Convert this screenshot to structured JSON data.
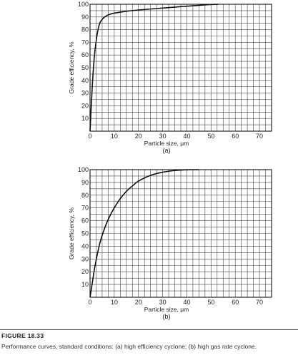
{
  "chart_data": [
    {
      "type": "line",
      "panel_label": "(a)",
      "xlabel": "Particle size, μm",
      "ylabel": "Grade efficiency, %",
      "xlim": [
        0,
        75
      ],
      "ylim": [
        0,
        100
      ],
      "x_ticks": [
        0,
        10,
        20,
        30,
        40,
        50,
        60,
        70
      ],
      "y_ticks": [
        10,
        20,
        30,
        40,
        50,
        60,
        70,
        80,
        90,
        100
      ],
      "grid": true,
      "series": [
        {
          "x": [
            0,
            0.5,
            1,
            1.5,
            2,
            3,
            4,
            5,
            6,
            8,
            10,
            15,
            20,
            30,
            40,
            50,
            53
          ],
          "y": [
            0,
            20,
            38,
            52,
            63,
            77,
            85,
            88,
            90,
            92,
            93,
            94.5,
            95.5,
            97,
            98.5,
            99.8,
            100
          ]
        }
      ]
    },
    {
      "type": "line",
      "panel_label": "(b)",
      "xlabel": "Particle size, μm",
      "ylabel": "Grade efficiency, %",
      "xlim": [
        0,
        75
      ],
      "ylim": [
        0,
        100
      ],
      "x_ticks": [
        0,
        10,
        20,
        30,
        40,
        50,
        60,
        70
      ],
      "y_ticks": [
        10,
        20,
        30,
        40,
        50,
        60,
        70,
        80,
        90,
        100
      ],
      "grid": true,
      "series": [
        {
          "x": [
            0,
            1,
            2,
            4,
            6,
            8,
            10,
            12,
            15,
            18,
            20,
            25,
            30,
            35,
            40,
            45
          ],
          "y": [
            0,
            12,
            24,
            42,
            54,
            63,
            70,
            76,
            83,
            88,
            91,
            95.5,
            98,
            99.3,
            99.9,
            100
          ]
        }
      ]
    }
  ],
  "figure": {
    "title": "FIGURE 18.33",
    "caption": "Performance curves, standard conditions: (a) high efficiency cyclone; (b) high gas rate cyclone."
  }
}
